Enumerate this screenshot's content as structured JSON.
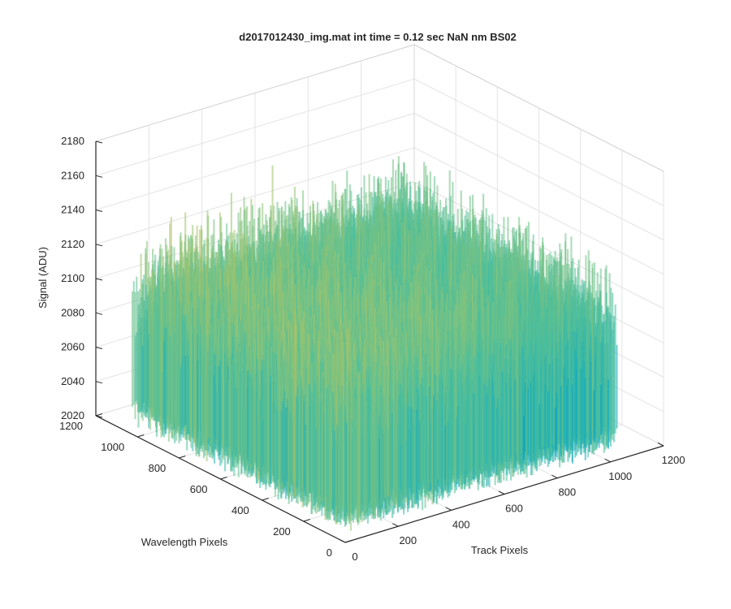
{
  "chart_data": {
    "type": "surface",
    "title": "d2017012430_img.mat int time = 0.12 sec  NaN nm BS02",
    "xlabel": "Track Pixels",
    "ylabel": "Wavelength Pixels",
    "zlabel": "Signal (ADU)",
    "xlim": [
      0,
      1200
    ],
    "ylim": [
      0,
      1200
    ],
    "zlim": [
      2020,
      2180
    ],
    "x_ticks": [
      0,
      200,
      400,
      600,
      800,
      1000,
      1200
    ],
    "y_ticks": [
      0,
      200,
      400,
      600,
      800,
      1000,
      1200
    ],
    "z_ticks": [
      2020,
      2040,
      2060,
      2080,
      2100,
      2120,
      2140,
      2160,
      2180
    ],
    "surface_extent": {
      "x": [
        0,
        1024
      ],
      "y": [
        0,
        1024
      ]
    },
    "signal_mean": 2090,
    "signal_range": [
      2025,
      2152
    ],
    "colormap": [
      "#0072BD",
      "#00A6CA",
      "#4FBF9A",
      "#A7C46A",
      "#DDB94A"
    ],
    "grid": true
  }
}
